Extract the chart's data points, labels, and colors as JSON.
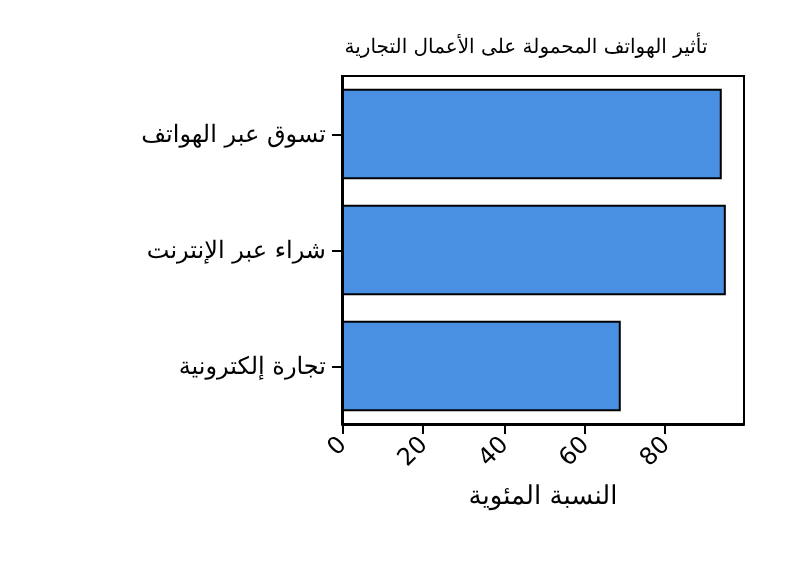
{
  "chart_data": {
    "type": "bar",
    "orientation": "horizontal",
    "title": "تأثير الهواتف المحمولة على الأعمال التجارية",
    "xlabel": "النسبة المئوية",
    "categories": [
      "تسوق عبر الهواتف",
      "شراء عبر الإنترنت",
      "تجارة إلكترونية"
    ],
    "values": [
      94,
      95,
      69
    ],
    "color": "#4a90e2",
    "xlim": [
      0,
      99.5
    ],
    "xticks": [
      0,
      20,
      40,
      60,
      80
    ],
    "grid": false
  }
}
